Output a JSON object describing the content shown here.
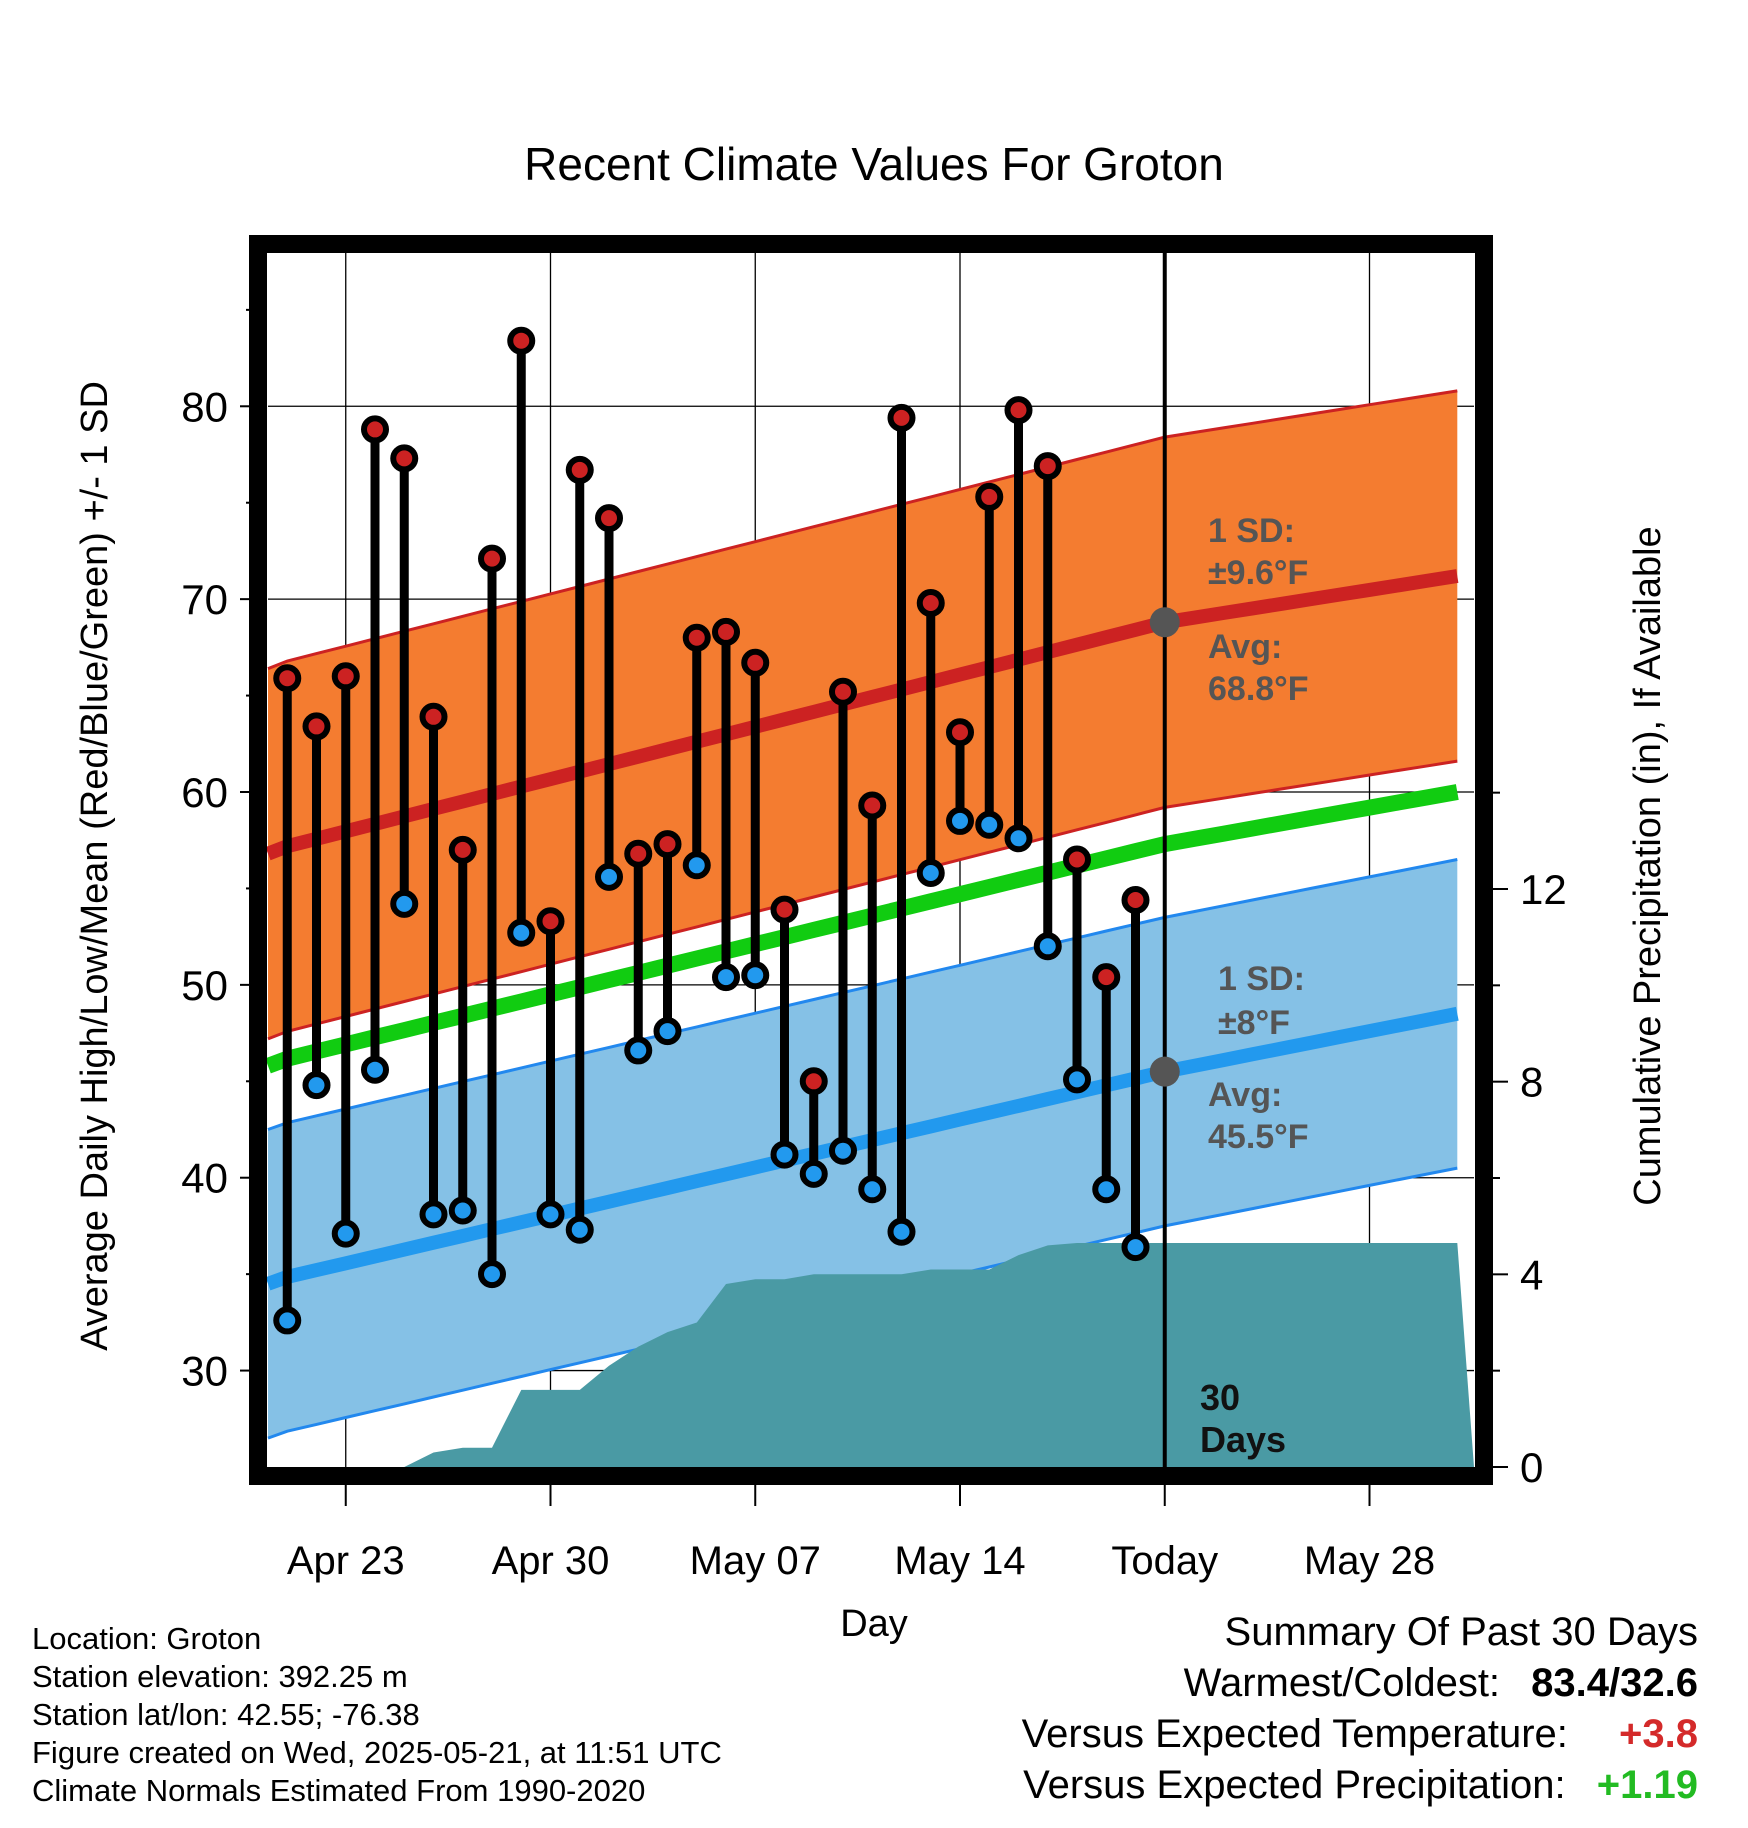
{
  "chart_data": {
    "type": "line",
    "title": "Recent Climate Values For Groton",
    "xlabel": "Day",
    "ylabel": "Average Daily High/Low/Mean (Red/Blue/Green) +/- 1 SD",
    "y2label": "Cumulative Precipitation (in), If Available",
    "ylim": [
      25,
      88
    ],
    "y2lim": [
      0,
      22
    ],
    "y_ticks": [
      30,
      40,
      50,
      60,
      70,
      80
    ],
    "y_tick_labels": [
      "30",
      "40",
      "50",
      "60",
      "70",
      "80"
    ],
    "y2_ticks": [
      0,
      4,
      8,
      12
    ],
    "y2_tick_labels": [
      "0",
      "4",
      "8",
      "12"
    ],
    "x_days": [
      "Apr 20",
      "Apr 21",
      "Apr 22",
      "Apr 23",
      "Apr 24",
      "Apr 25",
      "Apr 26",
      "Apr 27",
      "Apr 28",
      "Apr 29",
      "Apr 30",
      "May 01",
      "May 02",
      "May 03",
      "May 04",
      "May 05",
      "May 06",
      "May 07",
      "May 08",
      "May 09",
      "May 10",
      "May 11",
      "May 12",
      "May 13",
      "May 14",
      "May 15",
      "May 16",
      "May 17",
      "May 18",
      "May 19",
      "May 20",
      "May 21",
      "May 22",
      "May 23",
      "May 24",
      "May 25",
      "May 26",
      "May 27",
      "May 28",
      "May 29",
      "May 30",
      "May 31"
    ],
    "x_tick_labels": [
      "Apr 23",
      "Apr 30",
      "May 07",
      "May 14",
      "Today",
      "May 28"
    ],
    "x_tick_days": [
      "Apr 23",
      "Apr 30",
      "May 07",
      "May 14",
      "May 21",
      "May 28"
    ],
    "today": "May 21",
    "today_label": [
      "30",
      "Days"
    ],
    "series": [
      {
        "name": "High",
        "color": "#cc2222",
        "x": [
          "Apr 21",
          "Apr 22",
          "Apr 23",
          "Apr 24",
          "Apr 25",
          "Apr 26",
          "Apr 27",
          "Apr 28",
          "Apr 29",
          "Apr 30",
          "May 01",
          "May 02",
          "May 03",
          "May 04",
          "May 05",
          "May 06",
          "May 07",
          "May 08",
          "May 09",
          "May 10",
          "May 11",
          "May 12",
          "May 13",
          "May 14",
          "May 15",
          "May 16",
          "May 17",
          "May 18",
          "May 19",
          "May 20"
        ],
        "values": [
          65.9,
          63.4,
          66.0,
          78.8,
          77.3,
          63.9,
          57.0,
          72.1,
          83.4,
          53.3,
          76.7,
          74.2,
          56.8,
          57.3,
          68.0,
          68.3,
          66.7,
          53.9,
          45.0,
          65.2,
          59.3,
          79.4,
          69.8,
          63.1,
          75.3,
          79.8,
          76.9,
          56.5,
          50.4,
          54.4
        ]
      },
      {
        "name": "Low",
        "color": "#2299ee",
        "x": [
          "Apr 21",
          "Apr 22",
          "Apr 23",
          "Apr 24",
          "Apr 25",
          "Apr 26",
          "Apr 27",
          "Apr 28",
          "Apr 29",
          "Apr 30",
          "May 01",
          "May 02",
          "May 03",
          "May 04",
          "May 05",
          "May 06",
          "May 07",
          "May 08",
          "May 09",
          "May 10",
          "May 11",
          "May 12",
          "May 13",
          "May 14",
          "May 15",
          "May 16",
          "May 17",
          "May 18",
          "May 19",
          "May 20"
        ],
        "values": [
          32.6,
          44.8,
          37.1,
          45.6,
          54.2,
          38.1,
          38.3,
          35.0,
          52.7,
          38.1,
          37.3,
          55.6,
          46.6,
          47.6,
          56.2,
          50.4,
          50.5,
          41.2,
          40.2,
          41.4,
          39.4,
          37.2,
          55.8,
          58.5,
          58.3,
          57.6,
          52.0,
          45.1,
          39.4,
          36.4
        ]
      },
      {
        "name": "Normal High",
        "color": "#cc2222",
        "x": [
          "Apr 20",
          "May 21",
          "May 31"
        ],
        "values": [
          56.8,
          68.8,
          71.2
        ]
      },
      {
        "name": "Normal Low",
        "color": "#2299ee",
        "x": [
          "Apr 20",
          "May 21",
          "May 31"
        ],
        "values": [
          34.5,
          45.5,
          48.5
        ]
      },
      {
        "name": "Normal Mean",
        "color": "#11cc11",
        "x": [
          "Apr 20",
          "May 21",
          "May 31"
        ],
        "values": [
          45.8,
          57.3,
          60.0
        ]
      },
      {
        "name": "Cumulative Precipitation",
        "color": "#4a9aa4",
        "axis": "y2",
        "x": [
          "Apr 24",
          "Apr 25",
          "Apr 26",
          "Apr 27",
          "Apr 28",
          "Apr 29",
          "Apr 30",
          "May 01",
          "May 02",
          "May 03",
          "May 04",
          "May 05",
          "May 06",
          "May 07",
          "May 08",
          "May 09",
          "May 10",
          "May 11",
          "May 12",
          "May 13",
          "May 14",
          "May 15",
          "May 16",
          "May 17",
          "May 18",
          "May 19",
          "May 20",
          "May 21",
          "May 31"
        ],
        "values": [
          0,
          0,
          0.3,
          0.4,
          0.4,
          1.6,
          1.6,
          1.6,
          2.1,
          2.5,
          2.8,
          3.0,
          3.8,
          3.9,
          3.9,
          4.0,
          4.0,
          4.0,
          4.0,
          4.1,
          4.1,
          4.1,
          4.4,
          4.6,
          4.65,
          4.65,
          4.65,
          4.65,
          4.65
        ]
      }
    ],
    "bands": {
      "high_sd": 9.6,
      "low_sd": 8.0,
      "high_color": "#f47c30",
      "low_color": "#85c1e6"
    },
    "annotations": {
      "high_sd_label": "1 SD:",
      "high_sd_value": "±9.6°F",
      "high_avg_label": "Avg:",
      "high_avg_value": "68.8°F",
      "low_sd_label": "1 SD:",
      "low_sd_value": "±8°F",
      "low_avg_label": "Avg:",
      "low_avg_value": "45.5°F"
    }
  },
  "meta": {
    "location": "Location: Groton",
    "elevation": "Station elevation: 392.25 m",
    "latlon": "Station lat/lon: 42.55; -76.38",
    "created": "Figure created on Wed, 2025-05-21, at 11:51 UTC",
    "normals": "Climate Normals Estimated From 1990-2020"
  },
  "summary": {
    "title": "Summary Of Past 30 Days",
    "warmest_coldest_label": "Warmest/Coldest:",
    "warmest_coldest_value": "83.4/32.6",
    "temp_label": "Versus Expected Temperature:",
    "temp_value": "+3.8",
    "temp_color": "#d42a2a",
    "precip_label": "Versus Expected Precipitation:",
    "precip_value": "+1.19",
    "precip_color": "#22bb22"
  }
}
